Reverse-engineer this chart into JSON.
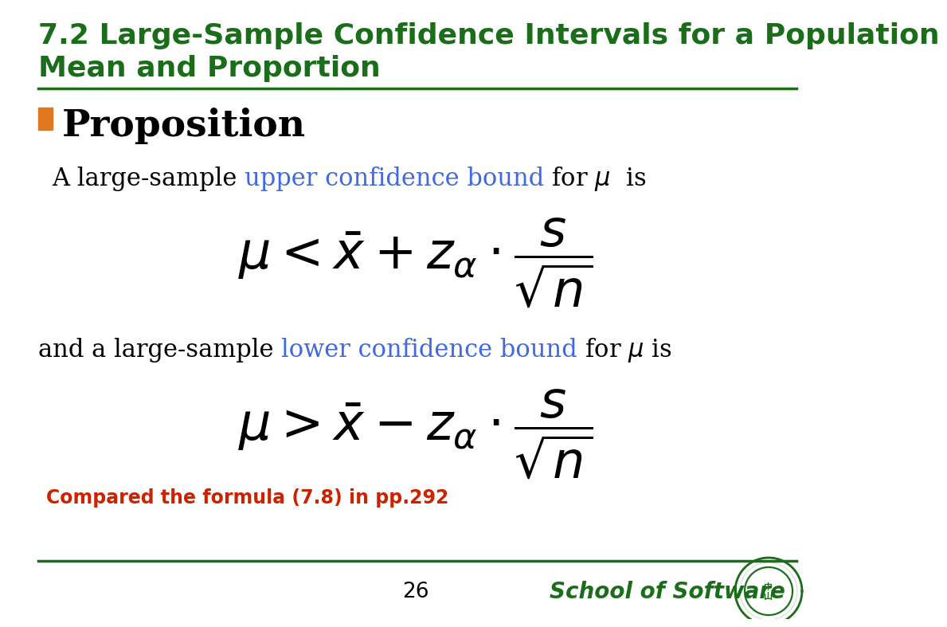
{
  "title_line1": "7.2 Large-Sample Confidence Intervals for a Population",
  "title_line2": "Mean and Proportion",
  "title_color": "#1a6e1a",
  "title_fontsize": 26,
  "bullet_color": "#e07820",
  "proposition_text": "Proposition",
  "proposition_fontsize": 34,
  "body_fontsize": 22,
  "black_text": "#000000",
  "blue_text": "#4169e1",
  "red_text": "#cc2200",
  "green_dark": "#1a6e1a",
  "background_color": "#ffffff",
  "page_number": "26",
  "school_text": "School of Software",
  "note_text": "Compared the formula (7.8) in pp.292",
  "line_color": "#1a6e1a"
}
